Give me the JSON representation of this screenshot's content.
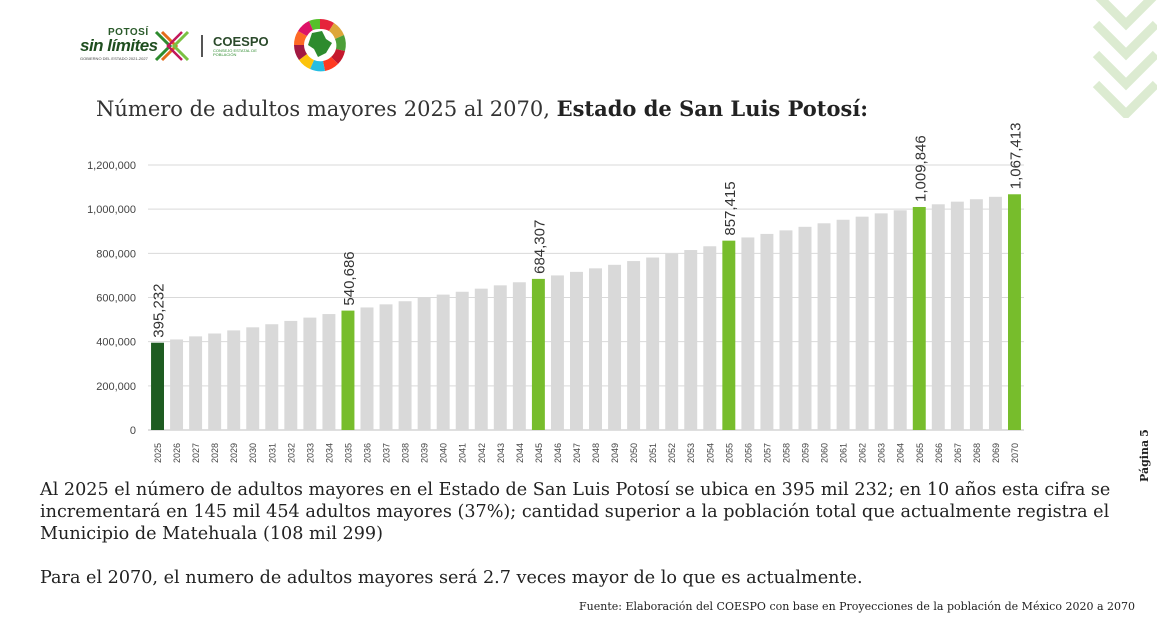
{
  "header": {
    "logo1_top": "POTOSÍ",
    "logo1_main": "sin límites",
    "logo1_sub": "GOBIERNO DEL ESTADO 2021-2027",
    "logo2_name": "COESPO",
    "logo2_sub": "CONSEJO ESTATAL DE POBLACIÓN"
  },
  "title": {
    "prefix": "Número de adultos mayores 2025 al 2070, ",
    "bold": "Estado de San Luis Potosí:"
  },
  "chart_data": {
    "type": "bar",
    "title": "Número de adultos mayores 2025 al 2070, Estado de San Luis Potosí:",
    "categories": [
      "2025",
      "2026",
      "2027",
      "2028",
      "2029",
      "2030",
      "2031",
      "2032",
      "2033",
      "2034",
      "2035",
      "2036",
      "2037",
      "2038",
      "2039",
      "2040",
      "2041",
      "2042",
      "2043",
      "2044",
      "2045",
      "2046",
      "2047",
      "2048",
      "2049",
      "2050",
      "2051",
      "2052",
      "2053",
      "2054",
      "2055",
      "2056",
      "2057",
      "2058",
      "2059",
      "2060",
      "2061",
      "2062",
      "2063",
      "2064",
      "2065",
      "2066",
      "2067",
      "2068",
      "2069",
      "2070"
    ],
    "values": [
      395232,
      410000,
      424000,
      437000,
      451000,
      465000,
      479000,
      494000,
      509000,
      525000,
      540686,
      555000,
      569000,
      583000,
      598000,
      613000,
      626000,
      640000,
      655000,
      669000,
      684307,
      700000,
      716000,
      732000,
      748000,
      765000,
      781000,
      798000,
      815000,
      832000,
      857415,
      872000,
      888000,
      904000,
      920000,
      936000,
      952000,
      966000,
      981000,
      995000,
      1009846,
      1022000,
      1034000,
      1045000,
      1056000,
      1067413
    ],
    "data_labels": {
      "2025": "395,232",
      "2035": "540,686",
      "2045": "684,307",
      "2055": "857,415",
      "2065": "1,009,846",
      "2070": "1,067,413"
    },
    "highlight_dark": [
      "2025"
    ],
    "highlight_green": [
      "2035",
      "2045",
      "2055",
      "2065",
      "2070"
    ],
    "yticks": [
      "0",
      "200,000",
      "400,000",
      "600,000",
      "800,000",
      "1,000,000",
      "1,200,000"
    ],
    "ylim": [
      0,
      1200000
    ],
    "grid": true,
    "colors": {
      "base": "#d9d9d9",
      "dark": "#1e5c21",
      "green": "#77bd2c",
      "grid": "#d9d9d9"
    }
  },
  "body": {
    "para1": "Al 2025 el número de adultos mayores en el Estado de San Luis Potosí se ubica en 395 mil 232; en 10 años esta cifra se incrementará en 145 mil 454 adultos mayores (37%); cantidad superior a la población total que actualmente registra el Municipio de Matehuala (108 mil 299)",
    "para2": "Para el 2070, el numero de adultos mayores será 2.7 veces mayor de lo que es actualmente.",
    "source": "Fuente: Elaboración del COESPO con base en Proyecciones de la población de México 2020 a 2070"
  },
  "page": {
    "label": "Página",
    "number": "5"
  }
}
